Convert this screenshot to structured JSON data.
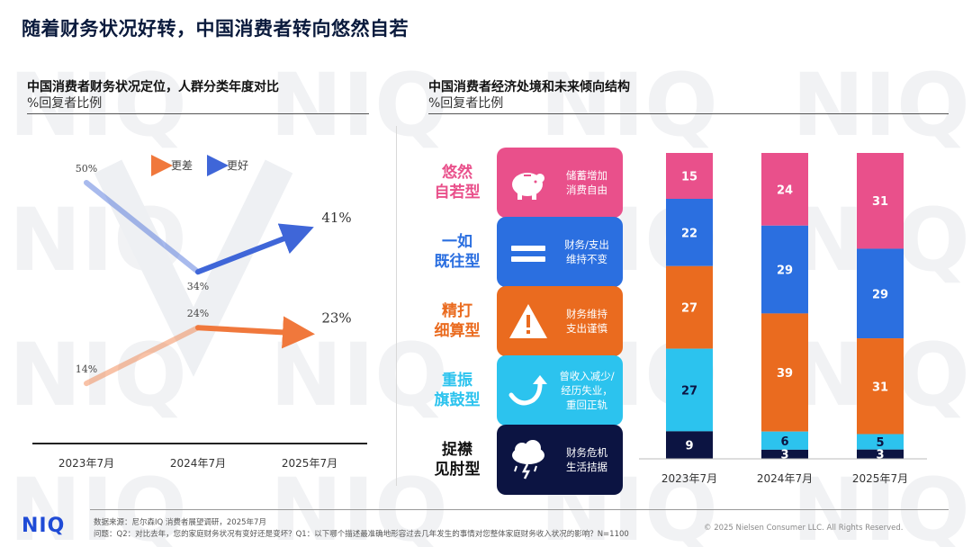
{
  "header": {
    "title": "随着财务状况好转，中国消费者转向悠然自若"
  },
  "left_panel": {
    "title": "中国消费者财务状况定位，人群分类年度对比",
    "subtitle": "%回复者比例"
  },
  "right_panel": {
    "title": "中国消费者经济处境和未来倾向结构",
    "subtitle": "%回复者比例"
  },
  "chart_data": [
    {
      "type": "line",
      "title": "中国消费者财务状况定位，人群分类年度对比",
      "categories": [
        "2023年7月",
        "2024年7月",
        "2025年7月"
      ],
      "series": [
        {
          "name": "更差",
          "values": [
            14,
            24,
            23
          ],
          "labels": [
            "14%",
            "24%",
            "23%"
          ],
          "color": "#f0783c"
        },
        {
          "name": "更好",
          "values": [
            50,
            34,
            41
          ],
          "labels": [
            "50%",
            "34%",
            "41%"
          ],
          "color": "#3f66d8"
        }
      ],
      "ylim": [
        0,
        60
      ],
      "grid": false,
      "legend": "top-center"
    },
    {
      "type": "bar",
      "stacked": true,
      "title": "中国消费者经济处境和未来倾向结构",
      "categories": [
        "2023年7月",
        "2024年7月",
        "2025年7月"
      ],
      "series": [
        {
          "name": "悠然自若型",
          "values": [
            15,
            24,
            31
          ],
          "color": "#e9508b"
        },
        {
          "name": "一如既往型",
          "values": [
            22,
            29,
            29
          ],
          "color": "#2b6fe0"
        },
        {
          "name": "精打细算型",
          "values": [
            27,
            39,
            31
          ],
          "color": "#ea6b1f"
        },
        {
          "name": "重振旗鼓型",
          "values": [
            27,
            6,
            5
          ],
          "color": "#2cc3ee"
        },
        {
          "name": "捉襟见肘型",
          "values": [
            9,
            3,
            3
          ],
          "color": "#0c1442"
        }
      ],
      "ylim": [
        0,
        100
      ]
    }
  ],
  "types": [
    {
      "name_line1": "悠然",
      "name_line2": "自若型",
      "desc_line1": "储蓄增加",
      "desc_line2": "消费自由",
      "desc_line3": "",
      "icon": "piggy-bank-icon",
      "color": "#e9508b"
    },
    {
      "name_line1": "一如",
      "name_line2": "既往型",
      "desc_line1": "财务/支出",
      "desc_line2": "维持不变",
      "desc_line3": "",
      "icon": "equals-icon",
      "color": "#2b6fe0"
    },
    {
      "name_line1": "精打",
      "name_line2": "细算型",
      "desc_line1": "财务维持",
      "desc_line2": "支出谨慎",
      "desc_line3": "",
      "icon": "warning-icon",
      "color": "#ea6b1f"
    },
    {
      "name_line1": "重振",
      "name_line2": "旗鼓型",
      "desc_line1": "曾收入减少/",
      "desc_line2": "经历失业，",
      "desc_line3": "重回正轨",
      "icon": "recovery-arrow-icon",
      "color": "#2cc3ee"
    },
    {
      "name_line1": "捉襟",
      "name_line2": "见肘型",
      "desc_line1": "财务危机",
      "desc_line2": "生活拮据",
      "desc_line3": "",
      "icon": "storm-cloud-icon",
      "color": "#0c1442"
    }
  ],
  "footer": {
    "logo": "NIQ",
    "source": "数据来源：尼尔森IQ 消费者展望调研，2025年7月",
    "question": "问题：Q2：对比去年，您的家庭财务状况有变好还是变坏？Q1：以下哪个描述最准确地形容过去几年发生的事情对您整体家庭财务收入状况的影响？N=1100",
    "copyright": "© 2025 Nielsen Consumer LLC. All Rights Reserved."
  }
}
